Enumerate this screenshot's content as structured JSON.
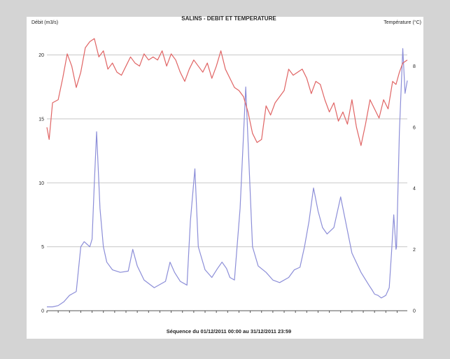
{
  "colors": {
    "outer_background": "#d4d4d4",
    "panel_background": "#ffffff",
    "grid": "#c8c8c8",
    "temperature_line": "#e06464",
    "flow_line": "#8c8ed8",
    "axis": "#555555",
    "text": "#222222"
  },
  "chart_data": {
    "type": "line",
    "title": "SALINS - DEBIT ET TEMPERATURE",
    "footer": "Séquence du 01/12/2011 00:00 au 31/12/2011 23:59",
    "left_axis": {
      "label": "Débit (m3/s)",
      "ticks": [
        0,
        5,
        10,
        15,
        20
      ],
      "range": [
        0,
        22
      ]
    },
    "right_axis": {
      "label": "Température (°C)",
      "ticks": [
        0,
        2,
        4,
        6,
        8
      ],
      "range": [
        0,
        9.2
      ]
    },
    "x_axis": {
      "range": [
        1,
        31.9
      ]
    },
    "grid": true,
    "series": [
      {
        "key": "flow",
        "axis": "left",
        "x": [
          1,
          1.5,
          2,
          2.5,
          3,
          3.2,
          3.6,
          4,
          4.3,
          4.8,
          5,
          5.2,
          5.4,
          5.7,
          6,
          6.3,
          6.8,
          7.5,
          8.2,
          8.6,
          9,
          9.6,
          10.5,
          11.5,
          11.9,
          12.3,
          12.8,
          13.4,
          13.7,
          14.1,
          14.4,
          15,
          15.6,
          16.1,
          16.5,
          16.9,
          17.2,
          17.6,
          18.1,
          18.6,
          19.2,
          19.7,
          20.4,
          21,
          21.6,
          22.4,
          22.9,
          23.4,
          23.8,
          24.2,
          24.6,
          25,
          25.4,
          25.8,
          26.4,
          27,
          28,
          28.8,
          29.5,
          29.8,
          30,
          30.3,
          30.6,
          31,
          31.3,
          31.5,
          31.7,
          31.9
        ],
        "y": [
          0.3,
          0.3,
          0.4,
          0.7,
          1.2,
          1.3,
          1.5,
          5.0,
          5.4,
          5.0,
          5.6,
          10.0,
          14.0,
          8.0,
          5.0,
          3.8,
          3.2,
          3.0,
          3.1,
          4.8,
          3.5,
          2.4,
          1.8,
          2.3,
          3.8,
          3.0,
          2.3,
          2.0,
          7.0,
          11.1,
          5.0,
          3.2,
          2.6,
          3.3,
          3.8,
          3.3,
          2.6,
          2.4,
          8.0,
          17.5,
          5.0,
          3.5,
          3.0,
          2.4,
          2.2,
          2.6,
          3.2,
          3.4,
          5.0,
          7.0,
          9.6,
          7.8,
          6.5,
          6.0,
          6.5,
          8.9,
          4.5,
          3.0,
          2.0,
          1.6,
          1.3,
          1.2,
          1.0,
          1.2,
          1.8,
          4.5,
          7.5,
          4.8
        ],
        "x_tail": [
          31.95,
          32.2,
          32.5,
          32.7,
          32.9
        ],
        "y_tail": [
          5.0,
          14.0,
          20.5,
          17.0,
          18.0
        ]
      },
      {
        "key": "temperature",
        "axis": "right",
        "x": [
          1,
          1.2,
          1.5,
          2,
          2.4,
          2.8,
          3.2,
          3.6,
          4,
          4.4,
          4.8,
          5.2,
          5.6,
          6,
          6.4,
          6.8,
          7.2,
          7.6,
          8,
          8.4,
          8.8,
          9.2,
          9.6,
          10,
          10.4,
          10.8,
          11.2,
          11.6,
          12,
          12.4,
          12.8,
          13.2,
          13.6,
          14,
          14.4,
          14.8,
          15.2,
          15.6,
          16,
          16.4,
          16.8,
          17.2,
          17.6,
          18,
          18.4,
          18.8,
          19.2,
          19.6,
          20,
          20.4,
          20.8,
          21.2,
          21.6,
          22,
          22.4,
          22.8,
          23.2,
          23.6,
          24,
          24.4,
          24.8,
          25.2,
          25.6,
          26,
          26.4,
          26.8,
          27.2,
          27.6,
          28,
          28.4,
          28.8,
          29.2,
          29.6,
          30,
          30.4,
          30.8,
          31.2,
          31.6,
          31.9,
          32.2,
          32.5,
          32.9
        ],
        "y": [
          6.0,
          5.6,
          6.8,
          6.9,
          7.6,
          8.4,
          8.0,
          7.3,
          7.8,
          8.6,
          8.8,
          8.9,
          8.3,
          8.5,
          7.9,
          8.1,
          7.8,
          7.7,
          8.0,
          8.3,
          8.1,
          8.0,
          8.4,
          8.2,
          8.3,
          8.2,
          8.5,
          8.0,
          8.4,
          8.2,
          7.8,
          7.5,
          7.9,
          8.2,
          8.0,
          7.8,
          8.1,
          7.6,
          8.0,
          8.5,
          7.9,
          7.6,
          7.3,
          7.2,
          7.0,
          6.5,
          5.8,
          5.5,
          5.6,
          6.7,
          6.4,
          6.8,
          7.0,
          7.2,
          7.9,
          7.7,
          7.8,
          7.9,
          7.6,
          7.1,
          7.5,
          7.4,
          6.9,
          6.5,
          6.8,
          6.2,
          6.5,
          6.1,
          6.9,
          6.0,
          5.4,
          6.1,
          6.9,
          6.6,
          6.3,
          6.9,
          6.6,
          7.5,
          7.4,
          7.8,
          8.1,
          8.2
        ]
      }
    ]
  }
}
